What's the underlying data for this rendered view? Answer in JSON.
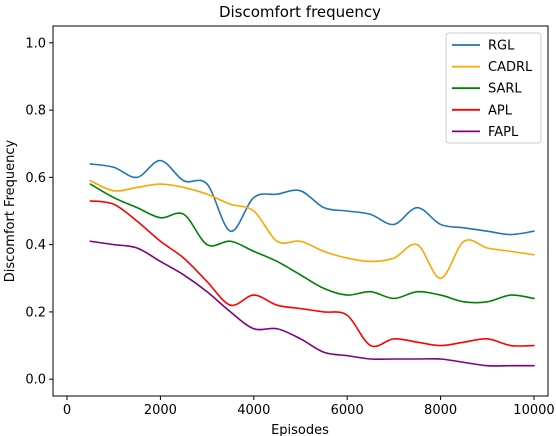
{
  "chart_data": {
    "type": "line",
    "title": "Discomfort frequency",
    "xlabel": "Episodes",
    "ylabel": "Discomfort Frequency",
    "xlim": [
      -300,
      10300
    ],
    "ylim": [
      -0.05,
      1.05
    ],
    "x_ticks": [
      0,
      2000,
      4000,
      6000,
      8000,
      10000
    ],
    "y_ticks": [
      0.0,
      0.2,
      0.4,
      0.6,
      0.8,
      1.0
    ],
    "x_tick_labels": [
      "0",
      "2000",
      "4000",
      "6000",
      "8000",
      "10000"
    ],
    "y_tick_labels": [
      "0.0",
      "0.2",
      "0.4",
      "0.6",
      "0.8",
      "1.0"
    ],
    "grid": false,
    "legend_position": "top-right",
    "x": [
      500,
      1000,
      1500,
      2000,
      2500,
      3000,
      3500,
      4000,
      4500,
      5000,
      5500,
      6000,
      6500,
      7000,
      7500,
      8000,
      8500,
      9000,
      9500,
      10000
    ],
    "series": [
      {
        "name": "RGL",
        "color": "#1f77b4",
        "values": [
          0.64,
          0.63,
          0.6,
          0.65,
          0.59,
          0.58,
          0.44,
          0.54,
          0.55,
          0.56,
          0.51,
          0.5,
          0.49,
          0.46,
          0.51,
          0.46,
          0.45,
          0.44,
          0.43,
          0.44
        ]
      },
      {
        "name": "CADRL",
        "color": "#ffa500",
        "values": [
          0.59,
          0.56,
          0.57,
          0.58,
          0.57,
          0.55,
          0.52,
          0.5,
          0.41,
          0.41,
          0.38,
          0.36,
          0.35,
          0.36,
          0.4,
          0.3,
          0.41,
          0.39,
          0.38,
          0.37
        ]
      },
      {
        "name": "SARL",
        "color": "#008000",
        "values": [
          0.58,
          0.54,
          0.51,
          0.48,
          0.49,
          0.4,
          0.41,
          0.38,
          0.35,
          0.31,
          0.27,
          0.25,
          0.26,
          0.24,
          0.26,
          0.25,
          0.23,
          0.23,
          0.25,
          0.24
        ]
      },
      {
        "name": "APL",
        "color": "#ff0000",
        "values": [
          0.53,
          0.52,
          0.47,
          0.41,
          0.36,
          0.29,
          0.22,
          0.25,
          0.22,
          0.21,
          0.2,
          0.19,
          0.1,
          0.12,
          0.11,
          0.1,
          0.11,
          0.12,
          0.1,
          0.1
        ]
      },
      {
        "name": "FAPL",
        "color": "#800080",
        "values": [
          0.41,
          0.4,
          0.39,
          0.35,
          0.31,
          0.26,
          0.2,
          0.15,
          0.15,
          0.12,
          0.08,
          0.07,
          0.06,
          0.06,
          0.06,
          0.06,
          0.05,
          0.04,
          0.04,
          0.04
        ]
      }
    ]
  }
}
